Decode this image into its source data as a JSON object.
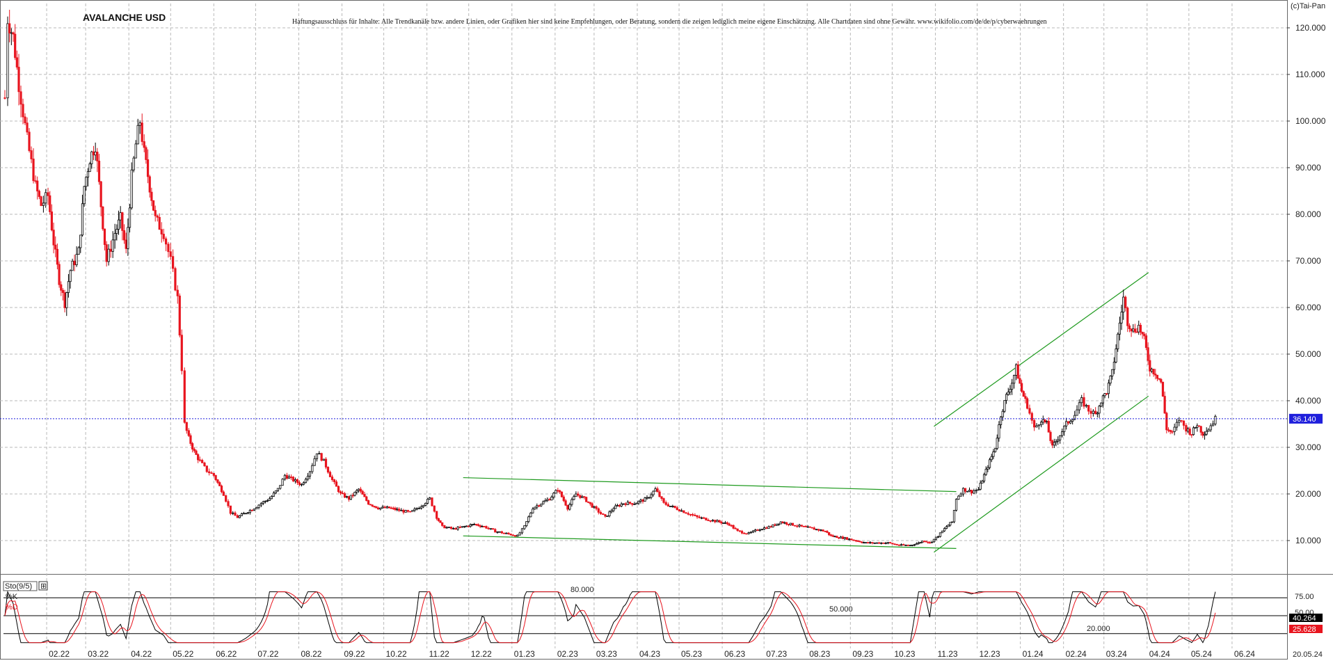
{
  "header": {
    "title": "AVALANCHE USD",
    "disclaimer": "Haftungsausschluss für Inhalte: Alle Trendkanäle bzw. andere Linien, oder Grafiken hier sind keine Empfehlungen, oder Beratung, sondern die zeigen lediglich meine eigene Einschätzung. Alle Chartdaten sind ohne Gewähr. www.wikifolio.com/de/de/p/cyberwaehrungen",
    "copyright": "(c)Tai-Pan"
  },
  "colors": {
    "up": "#000000",
    "down": "#e8141e",
    "grid": "#b9b9b9",
    "trendline": "#1e9a1e",
    "price_line": "#1f1fdc",
    "price_box": "#1f1fdc",
    "k_line": "#000000",
    "d_line": "#e8141e"
  },
  "indicator": {
    "name": "Sto(9/5)",
    "k_label": "%K",
    "d_label": "%D",
    "level_labels": [
      "80.000",
      "50.000",
      "20.000"
    ],
    "axis_ticks": [
      "75.00",
      "50.00"
    ],
    "k_value": "40.264",
    "d_value": "25.628",
    "levels": [
      80,
      50,
      20
    ]
  },
  "chart_data": {
    "type": "candlestick",
    "title": "AVALANCHE USD",
    "xlabel": "",
    "ylabel": "",
    "ylim": [
      0,
      125
    ],
    "y_ticks": [
      10,
      20,
      30,
      40,
      50,
      60,
      70,
      80,
      90,
      100,
      110,
      120
    ],
    "y_tick_labels": [
      "10.000",
      "20.000",
      "30.000",
      "40.000",
      "50.000",
      "60.000",
      "70.000",
      "80.000",
      "90.000",
      "100.000",
      "110.000",
      "120.000"
    ],
    "x_tick_labels": [
      "02.22",
      "03.22",
      "04.22",
      "05.22",
      "06.22",
      "07.22",
      "08.22",
      "09.22",
      "10.22",
      "11.22",
      "12.22",
      "01.23",
      "02.23",
      "03.23",
      "04.23",
      "05.23",
      "06.23",
      "07.23",
      "08.23",
      "09.23",
      "10.23",
      "11.23",
      "12.23",
      "01.24",
      "02.24",
      "03.24",
      "04.24",
      "05.24",
      "06.24"
    ],
    "last_price": 36.14,
    "last_price_label": "36.140",
    "last_date_label": "20.05.24",
    "grid": true,
    "close_series": [
      [
        "2022-01-02",
        105
      ],
      [
        "2022-01-04",
        122
      ],
      [
        "2022-01-08",
        118
      ],
      [
        "2022-01-12",
        108
      ],
      [
        "2022-01-18",
        96
      ],
      [
        "2022-01-24",
        86
      ],
      [
        "2022-01-28",
        82
      ],
      [
        "2022-02-02",
        84
      ],
      [
        "2022-02-06",
        74
      ],
      [
        "2022-02-10",
        66
      ],
      [
        "2022-02-14",
        61
      ],
      [
        "2022-02-18",
        68
      ],
      [
        "2022-02-24",
        72
      ],
      [
        "2022-02-28",
        86
      ],
      [
        "2022-03-04",
        92
      ],
      [
        "2022-03-08",
        95
      ],
      [
        "2022-03-12",
        82
      ],
      [
        "2022-03-16",
        70
      ],
      [
        "2022-03-22",
        76
      ],
      [
        "2022-03-26",
        79
      ],
      [
        "2022-03-30",
        72
      ],
      [
        "2022-04-03",
        88
      ],
      [
        "2022-04-06",
        95
      ],
      [
        "2022-04-09",
        100
      ],
      [
        "2022-04-12",
        93
      ],
      [
        "2022-04-16",
        86
      ],
      [
        "2022-04-20",
        79
      ],
      [
        "2022-04-26",
        76
      ],
      [
        "2022-05-01",
        70
      ],
      [
        "2022-05-06",
        62
      ],
      [
        "2022-05-09",
        47
      ],
      [
        "2022-05-11",
        35
      ],
      [
        "2022-05-14",
        32
      ],
      [
        "2022-05-18",
        29
      ],
      [
        "2022-05-22",
        27
      ],
      [
        "2022-05-27",
        25
      ],
      [
        "2022-06-01",
        24
      ],
      [
        "2022-06-08",
        20
      ],
      [
        "2022-06-13",
        16
      ],
      [
        "2022-06-18",
        15
      ],
      [
        "2022-06-24",
        16
      ],
      [
        "2022-06-30",
        17
      ],
      [
        "2022-07-05",
        18
      ],
      [
        "2022-07-11",
        19
      ],
      [
        "2022-07-17",
        21
      ],
      [
        "2022-07-22",
        24
      ],
      [
        "2022-07-28",
        23
      ],
      [
        "2022-08-03",
        22
      ],
      [
        "2022-08-09",
        25
      ],
      [
        "2022-08-14",
        29
      ],
      [
        "2022-08-19",
        27
      ],
      [
        "2022-08-25",
        23
      ],
      [
        "2022-08-31",
        20
      ],
      [
        "2022-09-06",
        19
      ],
      [
        "2022-09-13",
        21
      ],
      [
        "2022-09-20",
        18
      ],
      [
        "2022-09-27",
        17
      ],
      [
        "2022-10-05",
        17
      ],
      [
        "2022-10-12",
        16.5
      ],
      [
        "2022-10-20",
        16
      ],
      [
        "2022-10-28",
        17.5
      ],
      [
        "2022-11-03",
        19
      ],
      [
        "2022-11-08",
        15
      ],
      [
        "2022-11-12",
        13
      ],
      [
        "2022-11-20",
        12.5
      ],
      [
        "2022-11-28",
        13
      ],
      [
        "2022-12-05",
        13.5
      ],
      [
        "2022-12-12",
        13
      ],
      [
        "2022-12-20",
        12
      ],
      [
        "2022-12-28",
        11.5
      ],
      [
        "2023-01-05",
        11
      ],
      [
        "2023-01-10",
        13
      ],
      [
        "2023-01-16",
        17
      ],
      [
        "2023-01-22",
        18
      ],
      [
        "2023-01-28",
        19
      ],
      [
        "2023-02-03",
        21
      ],
      [
        "2023-02-10",
        17
      ],
      [
        "2023-02-16",
        20
      ],
      [
        "2023-02-22",
        19
      ],
      [
        "2023-03-01",
        17
      ],
      [
        "2023-03-09",
        15
      ],
      [
        "2023-03-15",
        17
      ],
      [
        "2023-03-22",
        18
      ],
      [
        "2023-03-30",
        18
      ],
      [
        "2023-04-08",
        19
      ],
      [
        "2023-04-14",
        21
      ],
      [
        "2023-04-20",
        18
      ],
      [
        "2023-04-28",
        17
      ],
      [
        "2023-05-06",
        16
      ],
      [
        "2023-05-14",
        15
      ],
      [
        "2023-05-22",
        14.5
      ],
      [
        "2023-05-30",
        14
      ],
      [
        "2023-06-06",
        13.5
      ],
      [
        "2023-06-12",
        12
      ],
      [
        "2023-06-20",
        11.5
      ],
      [
        "2023-06-28",
        12.5
      ],
      [
        "2023-07-06",
        13
      ],
      [
        "2023-07-13",
        14
      ],
      [
        "2023-07-20",
        13.5
      ],
      [
        "2023-07-28",
        13
      ],
      [
        "2023-08-06",
        12.5
      ],
      [
        "2023-08-14",
        12
      ],
      [
        "2023-08-18",
        11
      ],
      [
        "2023-08-28",
        10.5
      ],
      [
        "2023-09-05",
        10
      ],
      [
        "2023-09-12",
        9.5
      ],
      [
        "2023-09-20",
        9.5
      ],
      [
        "2023-09-28",
        9.5
      ],
      [
        "2023-10-06",
        9
      ],
      [
        "2023-10-14",
        9
      ],
      [
        "2023-10-20",
        9.5
      ],
      [
        "2023-10-24",
        10
      ],
      [
        "2023-10-28",
        9.5
      ],
      [
        "2023-11-03",
        11
      ],
      [
        "2023-11-09",
        13
      ],
      [
        "2023-11-13",
        14
      ],
      [
        "2023-11-16",
        19
      ],
      [
        "2023-11-21",
        21
      ],
      [
        "2023-11-27",
        20.5
      ],
      [
        "2023-12-02",
        21
      ],
      [
        "2023-12-06",
        24
      ],
      [
        "2023-12-10",
        27
      ],
      [
        "2023-12-14",
        30
      ],
      [
        "2023-12-18",
        37
      ],
      [
        "2023-12-22",
        41
      ],
      [
        "2023-12-26",
        44
      ],
      [
        "2023-12-29",
        47
      ],
      [
        "2024-01-02",
        42
      ],
      [
        "2024-01-06",
        39
      ],
      [
        "2024-01-11",
        34
      ],
      [
        "2024-01-16",
        36
      ],
      [
        "2024-01-20",
        35
      ],
      [
        "2024-01-24",
        30
      ],
      [
        "2024-01-28",
        32
      ],
      [
        "2024-02-03",
        35
      ],
      [
        "2024-02-09",
        37
      ],
      [
        "2024-02-14",
        40
      ],
      [
        "2024-02-19",
        38
      ],
      [
        "2024-02-24",
        37
      ],
      [
        "2024-02-28",
        40
      ],
      [
        "2024-03-03",
        42
      ],
      [
        "2024-03-07",
        46
      ],
      [
        "2024-03-11",
        54
      ],
      [
        "2024-03-15",
        62
      ],
      [
        "2024-03-18",
        57
      ],
      [
        "2024-03-22",
        55
      ],
      [
        "2024-03-26",
        56
      ],
      [
        "2024-03-30",
        53
      ],
      [
        "2024-04-03",
        47
      ],
      [
        "2024-04-07",
        46
      ],
      [
        "2024-04-11",
        44
      ],
      [
        "2024-04-15",
        34
      ],
      [
        "2024-04-19",
        33
      ],
      [
        "2024-04-24",
        36
      ],
      [
        "2024-04-29",
        34
      ],
      [
        "2024-05-03",
        33
      ],
      [
        "2024-05-07",
        35
      ],
      [
        "2024-05-11",
        33
      ],
      [
        "2024-05-15",
        34
      ],
      [
        "2024-05-20",
        36.14
      ]
    ],
    "trendlines": [
      {
        "name": "rising-channel-upper",
        "from": [
          "2023-10-31",
          34.5
        ],
        "to": [
          "2024-04-02",
          67.5
        ]
      },
      {
        "name": "rising-channel-lower",
        "from": [
          "2023-10-31",
          7.5
        ],
        "to": [
          "2024-04-02",
          41
        ]
      },
      {
        "name": "sideways-channel-upper",
        "from": [
          "2022-11-27",
          23.5
        ],
        "to": [
          "2023-11-16",
          20.5
        ]
      },
      {
        "name": "sideways-channel-lower",
        "from": [
          "2022-11-27",
          11
        ],
        "to": [
          "2023-11-16",
          8.3
        ]
      }
    ]
  }
}
